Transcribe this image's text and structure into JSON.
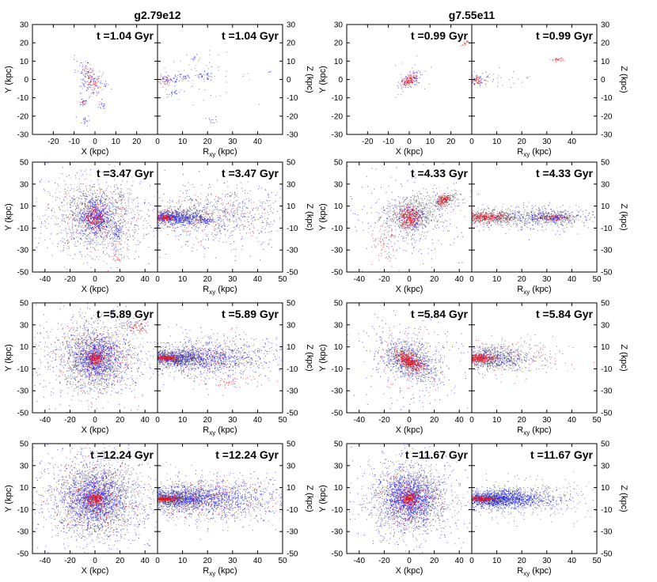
{
  "chart_data": {
    "type": "scatter",
    "columns": [
      {
        "title": "g2.79e12",
        "rows": [
          {
            "time": "t =1.04 Gyr",
            "left": {
              "xlabel": "X (kpc)",
              "ylabel": "Y (kpc)",
              "xlim": [
                -30,
                30
              ],
              "ylim": [
                -30,
                30
              ],
              "xticks": [
                "-20",
                "-10",
                "0",
                "10",
                "20"
              ],
              "yticks": [
                "30",
                "20",
                "10",
                "0",
                "-10",
                "-20",
                "-30"
              ]
            },
            "right": {
              "xlabel": "R",
              "xlabel_sub": "xy",
              "xlabel_unit": " (kpc)",
              "ylabel": "Z (kpc)",
              "xlim": [
                0,
                50
              ],
              "ylim": [
                -30,
                30
              ],
              "xticks": [
                "0",
                "10",
                "20",
                "30",
                "40"
              ],
              "yticks": [
                "30",
                "20",
                "10",
                "0",
                "-10",
                "-20",
                "-30"
              ]
            }
          },
          {
            "time": "t =3.47 Gyr",
            "left": {
              "xlabel": "X (kpc)",
              "ylabel": "Y (kpc)",
              "xlim": [
                -50,
                50
              ],
              "ylim": [
                -50,
                50
              ],
              "xticks": [
                "-40",
                "-20",
                "0",
                "20",
                "40"
              ],
              "yticks": [
                "50",
                "30",
                "10",
                "-10",
                "-30",
                "-50"
              ]
            },
            "right": {
              "xlabel": "R",
              "xlabel_sub": "xy",
              "xlabel_unit": " (kpc)",
              "ylabel": "Z (kpc)",
              "xlim": [
                0,
                50
              ],
              "ylim": [
                -50,
                50
              ],
              "xticks": [
                "0",
                "10",
                "20",
                "30",
                "40",
                "50"
              ],
              "yticks": [
                "50",
                "30",
                "10",
                "-10",
                "-30",
                "-50"
              ]
            }
          },
          {
            "time": "t =5.89 Gyr",
            "left": {
              "xlabel": "X (kpc)",
              "ylabel": "Y (kpc)",
              "xlim": [
                -50,
                50
              ],
              "ylim": [
                -50,
                50
              ],
              "xticks": [
                "-40",
                "-20",
                "0",
                "20",
                "40"
              ],
              "yticks": [
                "50",
                "30",
                "10",
                "-10",
                "-30",
                "-50"
              ]
            },
            "right": {
              "xlabel": "R",
              "xlabel_sub": "xy",
              "xlabel_unit": " (kpc)",
              "ylabel": "Z (kpc)",
              "xlim": [
                0,
                50
              ],
              "ylim": [
                -50,
                50
              ],
              "xticks": [
                "0",
                "10",
                "20",
                "30",
                "40",
                "50"
              ],
              "yticks": [
                "50",
                "30",
                "10",
                "-10",
                "-30",
                "-50"
              ]
            }
          },
          {
            "time": "t =12.24 Gyr",
            "left": {
              "xlabel": "X (kpc)",
              "ylabel": "Y (kpc)",
              "xlim": [
                -50,
                50
              ],
              "ylim": [
                -50,
                50
              ],
              "xticks": [
                "-40",
                "-20",
                "0",
                "20",
                "40"
              ],
              "yticks": [
                "50",
                "30",
                "10",
                "-10",
                "-30",
                "-50"
              ]
            },
            "right": {
              "xlabel": "R",
              "xlabel_sub": "xy",
              "xlabel_unit": " (kpc)",
              "ylabel": "Z (kpc)",
              "xlim": [
                0,
                50
              ],
              "ylim": [
                -50,
                50
              ],
              "xticks": [
                "0",
                "10",
                "20",
                "30",
                "40",
                "50"
              ],
              "yticks": [
                "50",
                "30",
                "10",
                "-10",
                "-30",
                "-50"
              ]
            }
          }
        ]
      },
      {
        "title": "g7.55e11",
        "rows": [
          {
            "time": "t =0.99 Gyr",
            "left": {
              "xlabel": "X (kpc)",
              "ylabel": "Y (kpc)",
              "xlim": [
                -30,
                30
              ],
              "ylim": [
                -30,
                30
              ],
              "xticks": [
                "-20",
                "-10",
                "0",
                "10",
                "20"
              ],
              "yticks": [
                "30",
                "20",
                "10",
                "0",
                "-10",
                "-20",
                "-30"
              ]
            },
            "right": {
              "xlabel": "R",
              "xlabel_sub": "xy",
              "xlabel_unit": " (kpc)",
              "ylabel": "Z (kpc)",
              "xlim": [
                0,
                50
              ],
              "ylim": [
                -30,
                30
              ],
              "xticks": [
                "0",
                "10",
                "20",
                "30",
                "40"
              ],
              "yticks": [
                "30",
                "20",
                "10",
                "0",
                "-10",
                "-20",
                "-30"
              ]
            }
          },
          {
            "time": "t =4.33 Gyr",
            "left": {
              "xlabel": "X (kpc)",
              "ylabel": "Y (kpc)",
              "xlim": [
                -50,
                50
              ],
              "ylim": [
                -50,
                50
              ],
              "xticks": [
                "-40",
                "-20",
                "0",
                "20",
                "40"
              ],
              "yticks": [
                "50",
                "30",
                "10",
                "-10",
                "-30",
                "-50"
              ]
            },
            "right": {
              "xlabel": "R",
              "xlabel_sub": "xy",
              "xlabel_unit": " (kpc)",
              "ylabel": "Z (kpc)",
              "xlim": [
                0,
                50
              ],
              "ylim": [
                -50,
                50
              ],
              "xticks": [
                "0",
                "10",
                "20",
                "30",
                "40",
                "50"
              ],
              "yticks": [
                "50",
                "30",
                "10",
                "-10",
                "-30",
                "-50"
              ]
            }
          },
          {
            "time": "t =5.84 Gyr",
            "left": {
              "xlabel": "X (kpc)",
              "ylabel": "Y (kpc)",
              "xlim": [
                -50,
                50
              ],
              "ylim": [
                -50,
                50
              ],
              "xticks": [
                "-40",
                "-20",
                "0",
                "20",
                "40"
              ],
              "yticks": [
                "50",
                "30",
                "10",
                "-10",
                "-30",
                "-50"
              ]
            },
            "right": {
              "xlabel": "R",
              "xlabel_sub": "xy",
              "xlabel_unit": " (kpc)",
              "ylabel": "Z (kpc)",
              "xlim": [
                0,
                50
              ],
              "ylim": [
                -50,
                50
              ],
              "xticks": [
                "0",
                "10",
                "20",
                "30",
                "40",
                "50"
              ],
              "yticks": [
                "50",
                "30",
                "10",
                "-10",
                "-30",
                "-50"
              ]
            }
          },
          {
            "time": "t =11.67 Gyr",
            "left": {
              "xlabel": "X (kpc)",
              "ylabel": "Y (kpc)",
              "xlim": [
                -50,
                50
              ],
              "ylim": [
                -50,
                50
              ],
              "xticks": [
                "-40",
                "-20",
                "0",
                "20",
                "40"
              ],
              "yticks": [
                "50",
                "30",
                "10",
                "-10",
                "-30",
                "-50"
              ]
            },
            "right": {
              "xlabel": "R",
              "xlabel_sub": "xy",
              "xlabel_unit": " (kpc)",
              "ylabel": "Z (kpc)",
              "xlim": [
                0,
                50
              ],
              "ylim": [
                -50,
                50
              ],
              "xticks": [
                "0",
                "10",
                "20",
                "30",
                "40",
                "50"
              ],
              "yticks": [
                "50",
                "30",
                "10",
                "-10",
                "-30",
                "-50"
              ]
            }
          }
        ]
      }
    ],
    "colors": {
      "red": "#e8101e",
      "blue": "#1a1aff",
      "black": "#202020"
    }
  }
}
